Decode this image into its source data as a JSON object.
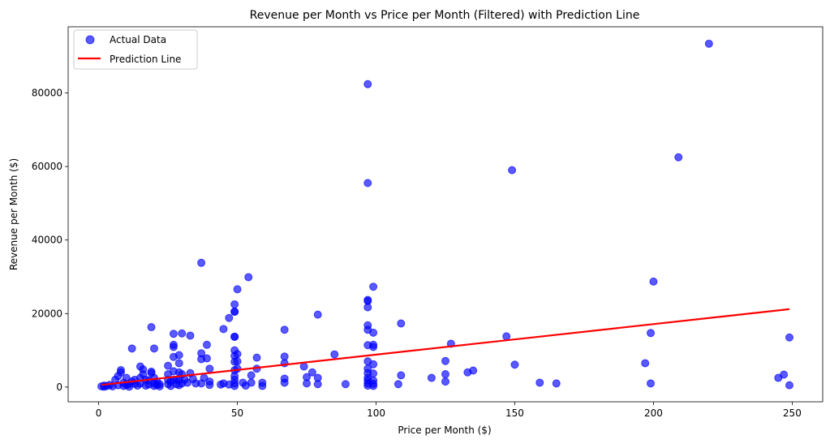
{
  "chart_data": {
    "type": "scatter",
    "title": "Revenue per Month vs Price per Month (Filtered) with Prediction Line",
    "xlabel": "Price per Month ($)",
    "ylabel": "Revenue per Month ($)",
    "xlim": [
      -11,
      261
    ],
    "ylim": [
      -4000,
      98000
    ],
    "xticks": [
      0,
      50,
      100,
      150,
      200,
      250
    ],
    "yticks": [
      0,
      20000,
      40000,
      60000,
      80000
    ],
    "grid": false,
    "legend_position": "top-left",
    "colors": {
      "scatter": "#0000ff",
      "prediction": "#ff0000"
    },
    "series": [
      {
        "name": "Actual Data",
        "type": "scatter",
        "points": [
          [
            1,
            200
          ],
          [
            2,
            400
          ],
          [
            2,
            100
          ],
          [
            3,
            300
          ],
          [
            4,
            600
          ],
          [
            5,
            200
          ],
          [
            6,
            2000
          ],
          [
            7,
            500
          ],
          [
            7,
            3000
          ],
          [
            8,
            4000
          ],
          [
            8,
            4600
          ],
          [
            9,
            1200
          ],
          [
            9,
            300
          ],
          [
            10,
            2500
          ],
          [
            10,
            600
          ],
          [
            11,
            800
          ],
          [
            11,
            100
          ],
          [
            12,
            10500
          ],
          [
            12,
            1500
          ],
          [
            13,
            900
          ],
          [
            13,
            2000
          ],
          [
            14,
            400
          ],
          [
            15,
            2500
          ],
          [
            15,
            5600
          ],
          [
            15,
            1000
          ],
          [
            16,
            3500
          ],
          [
            16,
            4800
          ],
          [
            17,
            2000
          ],
          [
            17,
            400
          ],
          [
            18,
            1800
          ],
          [
            18,
            700
          ],
          [
            19,
            16300
          ],
          [
            19,
            4200
          ],
          [
            19,
            3800
          ],
          [
            20,
            10500
          ],
          [
            20,
            2500
          ],
          [
            20,
            1000
          ],
          [
            20,
            300
          ],
          [
            21,
            1500
          ],
          [
            21,
            600
          ],
          [
            22,
            800
          ],
          [
            22,
            200
          ],
          [
            25,
            5800
          ],
          [
            25,
            3500
          ],
          [
            25,
            2000
          ],
          [
            25,
            800
          ],
          [
            26,
            1500
          ],
          [
            26,
            300
          ],
          [
            27,
            14500
          ],
          [
            27,
            11500
          ],
          [
            27,
            10900
          ],
          [
            27,
            8200
          ],
          [
            27,
            4300
          ],
          [
            27,
            2000
          ],
          [
            28,
            2000
          ],
          [
            28,
            800
          ],
          [
            29,
            8700
          ],
          [
            29,
            6500
          ],
          [
            29,
            4000
          ],
          [
            29,
            2000
          ],
          [
            29,
            500
          ],
          [
            30,
            14600
          ],
          [
            30,
            3500
          ],
          [
            30,
            1000
          ],
          [
            31,
            2000
          ],
          [
            32,
            1200
          ],
          [
            33,
            14000
          ],
          [
            33,
            3800
          ],
          [
            34,
            2200
          ],
          [
            35,
            1000
          ],
          [
            37,
            33800
          ],
          [
            37,
            9200
          ],
          [
            37,
            7600
          ],
          [
            37,
            1000
          ],
          [
            38,
            2500
          ],
          [
            39,
            11500
          ],
          [
            39,
            7800
          ],
          [
            40,
            5000
          ],
          [
            40,
            1500
          ],
          [
            40,
            600
          ],
          [
            44,
            700
          ],
          [
            45,
            1000
          ],
          [
            45,
            15800
          ],
          [
            47,
            18800
          ],
          [
            47,
            700
          ],
          [
            49,
            22500
          ],
          [
            49,
            20500
          ],
          [
            49,
            20500
          ],
          [
            49,
            13700
          ],
          [
            49,
            13700
          ],
          [
            49,
            10000
          ],
          [
            49,
            8500
          ],
          [
            49,
            6900
          ],
          [
            49,
            4600
          ],
          [
            49,
            3000
          ],
          [
            49,
            2000
          ],
          [
            49,
            1000
          ],
          [
            49,
            300
          ],
          [
            50,
            26600
          ],
          [
            50,
            9000
          ],
          [
            50,
            7000
          ],
          [
            50,
            5000
          ],
          [
            52,
            1200
          ],
          [
            53,
            400
          ],
          [
            54,
            29900
          ],
          [
            55,
            3200
          ],
          [
            55,
            1200
          ],
          [
            57,
            8000
          ],
          [
            57,
            5000
          ],
          [
            59,
            1200
          ],
          [
            59,
            300
          ],
          [
            67,
            15600
          ],
          [
            67,
            8300
          ],
          [
            67,
            6500
          ],
          [
            67,
            2300
          ],
          [
            67,
            1200
          ],
          [
            74,
            5600
          ],
          [
            75,
            2700
          ],
          [
            75,
            1000
          ],
          [
            77,
            4000
          ],
          [
            79,
            19700
          ],
          [
            79,
            2500
          ],
          [
            79,
            800
          ],
          [
            85,
            8900
          ],
          [
            89,
            800
          ],
          [
            97,
            82400
          ],
          [
            97,
            55500
          ],
          [
            97,
            23700
          ],
          [
            97,
            23400
          ],
          [
            97,
            21700
          ],
          [
            97,
            16800
          ],
          [
            97,
            15600
          ],
          [
            97,
            11400
          ],
          [
            97,
            7000
          ],
          [
            97,
            5000
          ],
          [
            97,
            3800
          ],
          [
            97,
            2500
          ],
          [
            97,
            1800
          ],
          [
            97,
            1000
          ],
          [
            97,
            400
          ],
          [
            99,
            27300
          ],
          [
            99,
            14800
          ],
          [
            99,
            11500
          ],
          [
            99,
            10900
          ],
          [
            99,
            6200
          ],
          [
            99,
            3700
          ],
          [
            99,
            1800
          ],
          [
            99,
            900
          ],
          [
            99,
            300
          ],
          [
            108,
            800
          ],
          [
            109,
            17300
          ],
          [
            109,
            3200
          ],
          [
            120,
            2500
          ],
          [
            125,
            7100
          ],
          [
            125,
            3500
          ],
          [
            125,
            1500
          ],
          [
            127,
            11800
          ],
          [
            133,
            4000
          ],
          [
            135,
            4500
          ],
          [
            147,
            13800
          ],
          [
            149,
            59000
          ],
          [
            150,
            6100
          ],
          [
            159,
            1200
          ],
          [
            165,
            1000
          ],
          [
            197,
            6500
          ],
          [
            199,
            14700
          ],
          [
            199,
            1000
          ],
          [
            200,
            28700
          ],
          [
            209,
            62500
          ],
          [
            220,
            93400
          ],
          [
            245,
            2500
          ],
          [
            247,
            3400
          ],
          [
            249,
            13500
          ],
          [
            249,
            500
          ]
        ]
      },
      {
        "name": "Prediction Line",
        "type": "line",
        "points": [
          [
            1,
            600
          ],
          [
            249,
            21200
          ]
        ]
      }
    ]
  }
}
